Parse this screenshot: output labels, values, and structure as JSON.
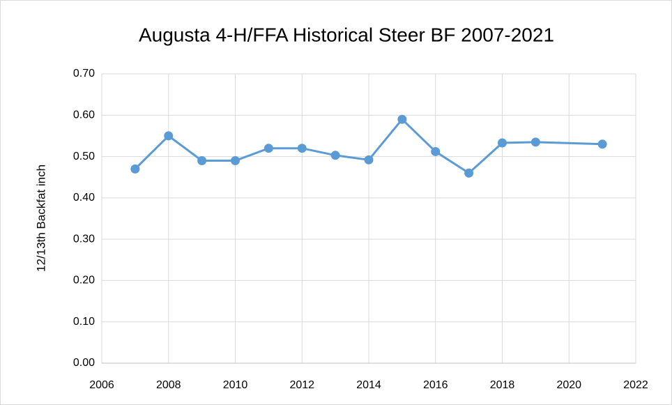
{
  "chart_data": {
    "type": "line",
    "title": "Augusta 4-H/FFA Historical Steer BF 2007-2021",
    "y_label": "12/13th Backfat inch",
    "x": [
      2007,
      2008,
      2009,
      2010,
      2011,
      2012,
      2013,
      2014,
      2015,
      2016,
      2017,
      2018,
      2019,
      2021
    ],
    "series": [
      {
        "name": "Backfat",
        "color": "#5b9bd5",
        "values": [
          0.47,
          0.55,
          0.49,
          0.49,
          0.52,
          0.52,
          0.503,
          0.492,
          0.59,
          0.512,
          0.46,
          0.533,
          0.535,
          0.53
        ]
      }
    ],
    "xlim": [
      2006,
      2022
    ],
    "xticks": [
      2006,
      2008,
      2010,
      2012,
      2014,
      2016,
      2018,
      2020,
      2022
    ],
    "ylim": [
      0,
      0.7
    ],
    "yticks": [
      {
        "value": 0,
        "label": "0.00"
      },
      {
        "value": 0.1,
        "label": "0.10"
      },
      {
        "value": 0.2,
        "label": "0.20"
      },
      {
        "value": 0.3,
        "label": "0.30"
      },
      {
        "value": 0.4,
        "label": "0.40"
      },
      {
        "value": 0.5,
        "label": "0.50"
      },
      {
        "value": 0.6,
        "label": "0.60"
      },
      {
        "value": 0.7,
        "label": "0.70"
      }
    ],
    "grid": true
  }
}
